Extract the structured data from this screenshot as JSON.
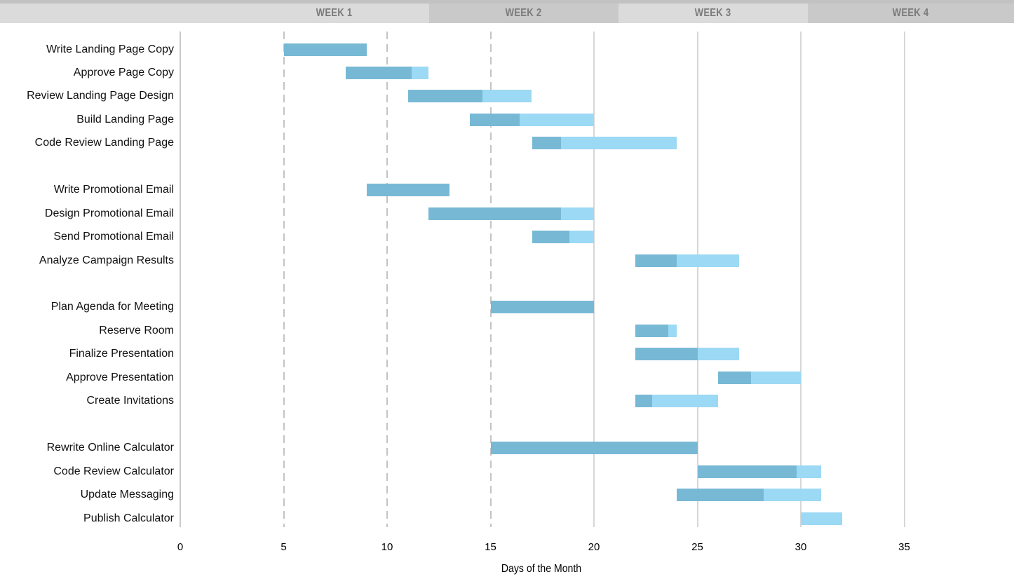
{
  "header": {
    "weeks": [
      {
        "label": "WEEK 1",
        "shade": "light"
      },
      {
        "label": "WEEK 2",
        "shade": "dark"
      },
      {
        "label": "WEEK 3",
        "shade": "light"
      },
      {
        "label": "WEEK 4",
        "shade": "dark"
      }
    ]
  },
  "chart_data": {
    "type": "bar",
    "subtype": "gantt",
    "title": "",
    "xlabel": "Days of the Month",
    "ylabel": "",
    "x_ticks": [
      0,
      5,
      10,
      15,
      20,
      25,
      30,
      35
    ],
    "xlim": [
      0,
      40
    ],
    "grid": "vertical",
    "legend": "none",
    "groups": [
      {
        "tasks": [
          {
            "label": "Write Landing Page Copy",
            "start": 5,
            "complete_until": 9,
            "end": 9
          },
          {
            "label": "Approve Page Copy",
            "start": 8,
            "complete_until": 11.2,
            "end": 12
          },
          {
            "label": "Review Landing Page Design",
            "start": 11,
            "complete_until": 14.6,
            "end": 17
          },
          {
            "label": "Build Landing Page",
            "start": 14,
            "complete_until": 16.4,
            "end": 20
          },
          {
            "label": "Code Review Landing Page",
            "start": 17,
            "complete_until": 18.4,
            "end": 24
          }
        ]
      },
      {
        "tasks": [
          {
            "label": "Write Promotional Email",
            "start": 9,
            "complete_until": 13,
            "end": 13
          },
          {
            "label": "Design Promotional Email",
            "start": 12,
            "complete_until": 18.4,
            "end": 20
          },
          {
            "label": "Send Promotional Email",
            "start": 17,
            "complete_until": 18.8,
            "end": 20
          },
          {
            "label": "Analyze Campaign Results",
            "start": 22,
            "complete_until": 24,
            "end": 27
          }
        ]
      },
      {
        "tasks": [
          {
            "label": "Plan Agenda for Meeting",
            "start": 15,
            "complete_until": 20,
            "end": 20
          },
          {
            "label": "Reserve Room",
            "start": 22,
            "complete_until": 23.6,
            "end": 24
          },
          {
            "label": "Finalize Presentation",
            "start": 22,
            "complete_until": 25,
            "end": 27
          },
          {
            "label": "Approve Presentation",
            "start": 26,
            "complete_until": 27.6,
            "end": 30
          },
          {
            "label": "Create Invitations",
            "start": 22,
            "complete_until": 22.8,
            "end": 26
          }
        ]
      },
      {
        "tasks": [
          {
            "label": "Rewrite Online Calculator",
            "start": 15,
            "complete_until": 25,
            "end": 25
          },
          {
            "label": "Code Review Calculator",
            "start": 25,
            "complete_until": 29.8,
            "end": 31
          },
          {
            "label": "Update Messaging",
            "start": 24,
            "complete_until": 28.2,
            "end": 31
          },
          {
            "label": "Publish Calculator",
            "start": 30,
            "complete_until": 30,
            "end": 32
          }
        ]
      }
    ],
    "colors": {
      "bar_complete": "#77b9d5",
      "bar_remaining": "#9cd9f4",
      "grid_dashed": "#c4c4c4",
      "grid_solid": "#d7d7d7",
      "axis_line": "#c9c9c9",
      "header_light": "#dbdbdb",
      "header_dark": "#c9c9c9",
      "header_text": "#7b7b7b"
    }
  }
}
